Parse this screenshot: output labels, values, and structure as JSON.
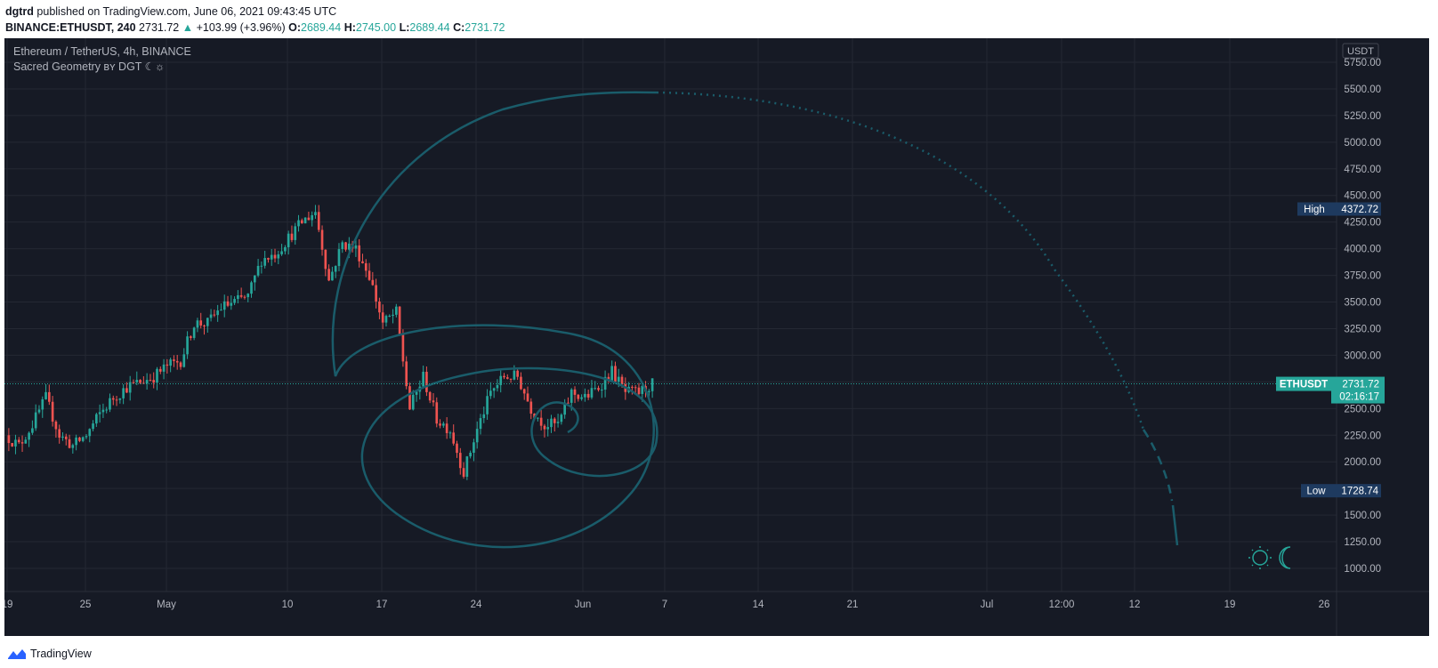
{
  "header": {
    "user": "dgtrd",
    "published_text": " published on TradingView.com, June 06, 2021 09:43:45 UTC",
    "symbol_interval": "BINANCE:ETHUSDT, 240",
    "last": "2731.72",
    "change": "+103.99 (+3.96%)",
    "o_label": "O:",
    "o_val": "2689.44",
    "h_label": "H:",
    "h_val": "2745.00",
    "l_label": "L:",
    "l_val": "2689.44",
    "c_label": "C:",
    "c_val": "2731.72"
  },
  "legend": {
    "series_title": "Ethereum / TetherUS, 4h, BINANCE",
    "indicator": "Sacred Geometry ʙʏ DGT ☾☼"
  },
  "axis": {
    "currency": "USDT",
    "price_ticks": [
      "5750.00",
      "5500.00",
      "5250.00",
      "5000.00",
      "4750.00",
      "4500.00",
      "4250.00",
      "4000.00",
      "3750.00",
      "3500.00",
      "3250.00",
      "3000.00",
      "2750.00",
      "2500.00",
      "2250.00",
      "2000.00",
      "1750.00",
      "1500.00",
      "1250.00",
      "1000.00"
    ],
    "time_ticks": [
      "19",
      "25",
      "May",
      "10",
      "17",
      "24",
      "Jun",
      "7",
      "14",
      "21",
      "Jul",
      "12:00",
      "12",
      "19",
      "26"
    ]
  },
  "labels": {
    "high_name": "High",
    "high_val": "4372.72",
    "low_name": "Low",
    "low_val": "1728.74",
    "sym_name": "ETHUSDT",
    "sym_val": "2731.72",
    "countdown": "02:16:17"
  },
  "colors": {
    "background": "#161a25",
    "grid": "#242833",
    "up": "#26a69a",
    "down": "#ef5350",
    "spiral": "#1a5c6a",
    "price_line": "#26a69a",
    "high_low_bg": "#1e3a5f"
  },
  "footer": {
    "brand": "TradingView"
  },
  "chart_data": {
    "type": "candlestick",
    "symbol": "ETHUSDT",
    "interval": "240",
    "ylim": [
      900,
      5900
    ],
    "ohlc_path": [
      [
        "2021-04-19",
        2250
      ],
      [
        "2021-04-20",
        2150
      ],
      [
        "2021-04-21",
        2350
      ],
      [
        "2021-04-22",
        2600
      ],
      [
        "2021-04-23",
        2250
      ],
      [
        "2021-04-24",
        2150
      ],
      [
        "2021-04-25",
        2250
      ],
      [
        "2021-04-26",
        2450
      ],
      [
        "2021-04-27",
        2600
      ],
      [
        "2021-04-28",
        2700
      ],
      [
        "2021-04-29",
        2750
      ],
      [
        "2021-04-30",
        2800
      ],
      [
        "2021-05-01",
        2900
      ],
      [
        "2021-05-02",
        2950
      ],
      [
        "2021-05-03",
        3300
      ],
      [
        "2021-05-04",
        3300
      ],
      [
        "2021-05-05",
        3450
      ],
      [
        "2021-05-06",
        3500
      ],
      [
        "2021-05-07",
        3550
      ],
      [
        "2021-05-08",
        3900
      ],
      [
        "2021-05-09",
        3950
      ],
      [
        "2021-05-10",
        4100
      ],
      [
        "2021-05-11",
        4250
      ],
      [
        "2021-05-12",
        4350
      ],
      [
        "2021-05-13",
        3700
      ],
      [
        "2021-05-14",
        4050
      ],
      [
        "2021-05-15",
        4000
      ],
      [
        "2021-05-16",
        3750
      ],
      [
        "2021-05-17",
        3300
      ],
      [
        "2021-05-18",
        3400
      ],
      [
        "2021-05-19",
        2500
      ],
      [
        "2021-05-20",
        2800
      ],
      [
        "2021-05-21",
        2400
      ],
      [
        "2021-05-22",
        2300
      ],
      [
        "2021-05-23",
        1900
      ],
      [
        "2021-05-24",
        2300
      ],
      [
        "2021-05-25",
        2650
      ],
      [
        "2021-05-26",
        2800
      ],
      [
        "2021-05-27",
        2800
      ],
      [
        "2021-05-28",
        2500
      ],
      [
        "2021-05-29",
        2350
      ],
      [
        "2021-05-30",
        2350
      ],
      [
        "2021-05-31",
        2650
      ],
      [
        "2021-06-01",
        2600
      ],
      [
        "2021-06-02",
        2700
      ],
      [
        "2021-06-03",
        2850
      ],
      [
        "2021-06-04",
        2650
      ],
      [
        "2021-06-05",
        2650
      ],
      [
        "2021-06-06",
        2731.72
      ]
    ],
    "last_price": 2731.72,
    "high": 4372.72,
    "low": 1728.74
  }
}
